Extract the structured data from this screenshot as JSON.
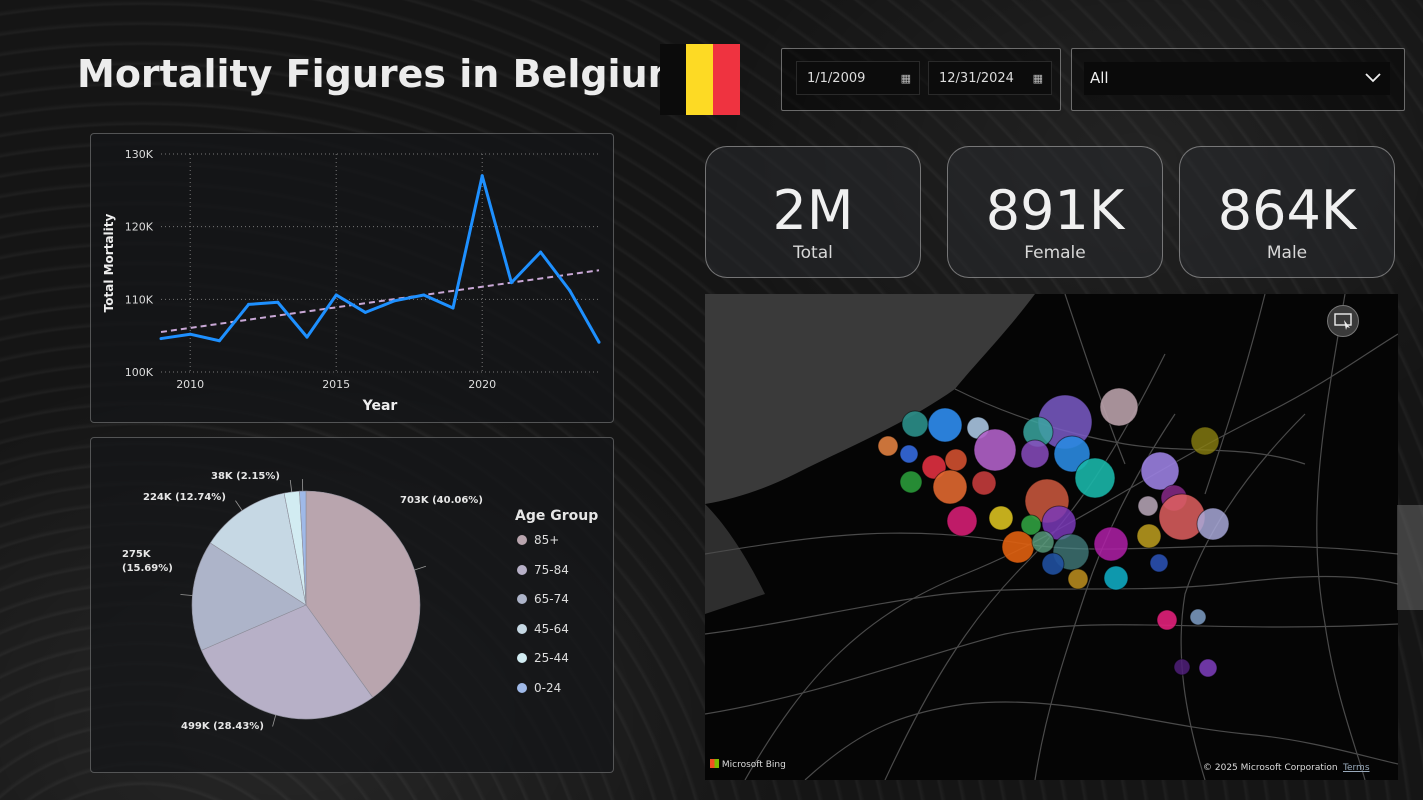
{
  "header": {
    "title": "Mortality Figures in Belgium",
    "flag_colors": [
      "#0b0b0b",
      "#FDDA24",
      "#EF3340"
    ]
  },
  "filters": {
    "start_date": "1/1/2009",
    "end_date": "12/31/2024",
    "calendar_icon": "calendar-icon",
    "dropdown_value": "All",
    "dropdown_icon": "chevron-down-icon"
  },
  "kpis": [
    {
      "value": "2M",
      "label": "Total"
    },
    {
      "value": "891K",
      "label": "Female"
    },
    {
      "value": "864K",
      "label": "Male"
    }
  ],
  "map": {
    "provider": "Microsoft Bing",
    "copyright": "© 2025 Microsoft Corporation",
    "terms": "Terms",
    "focus_mode_icon": "focus-mode-icon"
  },
  "chart_data": [
    {
      "type": "line",
      "xlabel": "Year",
      "ylabel": "Total Mortality",
      "xlim": [
        2009,
        2024
      ],
      "ylim": [
        100000,
        130000
      ],
      "x_ticks": [
        "2010",
        "2015",
        "2020"
      ],
      "y_ticks": [
        "100K",
        "110K",
        "120K",
        "130K"
      ],
      "grid": true,
      "series": [
        {
          "color": "#1E90FF",
          "x": [
            2009,
            2010,
            2011,
            2012,
            2013,
            2014,
            2015,
            2016,
            2017,
            2018,
            2019,
            2020,
            2021,
            2022,
            2023,
            2024
          ],
          "values": [
            104600,
            105200,
            104300,
            109300,
            109600,
            104800,
            110600,
            108200,
            109800,
            110600,
            108800,
            127000,
            112300,
            116500,
            111200,
            104100
          ]
        }
      ],
      "trendline": {
        "color": "#C9A8D6",
        "from": [
          2009,
          105500
        ],
        "to": [
          2024,
          114000
        ]
      }
    },
    {
      "type": "pie",
      "legend_title": "Age Group",
      "legend_position": "right",
      "slices": [
        {
          "label": "85+",
          "value": 703000,
          "display": "703K (40.06%)",
          "color": "#B9A5AE"
        },
        {
          "label": "75-84",
          "value": 499000,
          "display": "499K (28.43%)",
          "color": "#B7B0C7"
        },
        {
          "label": "65-74",
          "value": 275000,
          "display": "275K (15.69%)",
          "color": "#ADB4C9"
        },
        {
          "label": "45-64",
          "value": 224000,
          "display": "224K (12.74%)",
          "color": "#C6D8E4"
        },
        {
          "label": "25-44",
          "value": 38000,
          "display": "38K (2.15%)",
          "color": "#D2ECF2"
        },
        {
          "label": "0-24",
          "value": 16000,
          "display": "",
          "color": "#9FB9E8"
        }
      ]
    }
  ]
}
